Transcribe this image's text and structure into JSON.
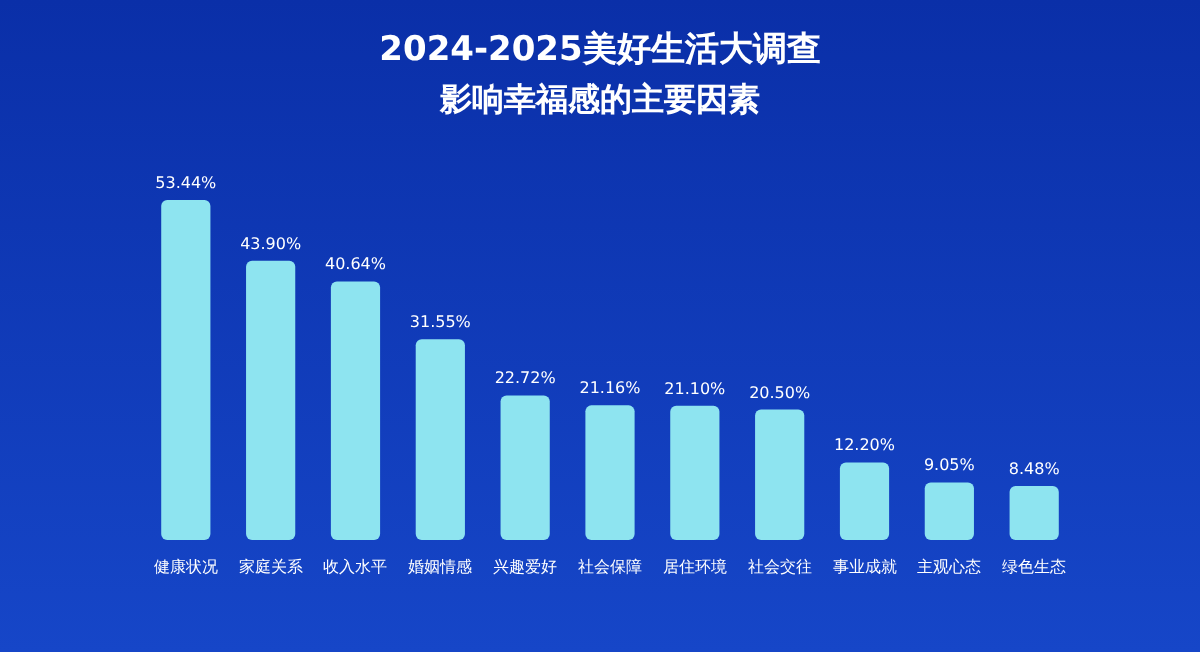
{
  "chart_data": {
    "type": "bar",
    "title": "2024-2025美好生活大调查",
    "subtitle": "影响幸福感的主要因素",
    "categories": [
      "健康状况",
      "家庭关系",
      "收入水平",
      "婚姻情感",
      "兴趣爱好",
      "社会保障",
      "居住环境",
      "社会交往",
      "事业成就",
      "主观心态",
      "绿色生态"
    ],
    "values": [
      53.44,
      43.9,
      40.64,
      31.55,
      22.72,
      21.16,
      21.1,
      20.5,
      12.2,
      9.05,
      8.48
    ],
    "value_labels": [
      "53.44%",
      "43.90%",
      "40.64%",
      "31.55%",
      "22.72%",
      "21.16%",
      "21.10%",
      "20.50%",
      "12.20%",
      "9.05%",
      "8.48%"
    ],
    "color": "#8ee4f0"
  }
}
